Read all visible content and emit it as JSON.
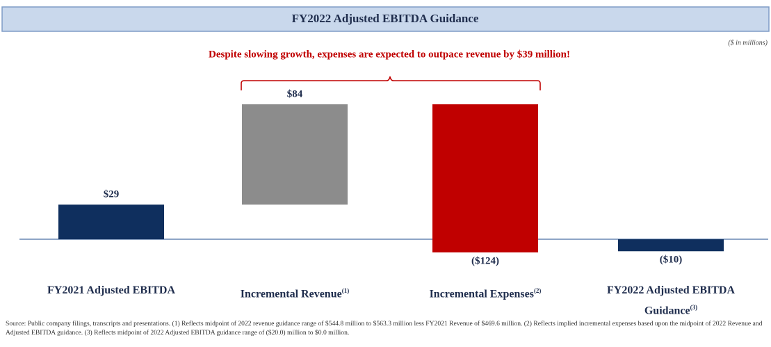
{
  "chart_data": {
    "type": "waterfall",
    "title": "FY2022 Adjusted EBITDA Guidance",
    "units": "($ in millions)",
    "annotation": "Despite slowing growth, expenses are expected to outpace revenue by $39 million!",
    "categories": [
      "FY2021 Adjusted EBITDA",
      "Incremental Revenue",
      "Incremental Expenses",
      "FY2022 Adjusted EBITDA Guidance"
    ],
    "category_notes": [
      null,
      "(1)",
      "(2)",
      "(3)"
    ],
    "measures": [
      "absolute",
      "relative",
      "relative",
      "total"
    ],
    "values": [
      29,
      84,
      -124,
      -10
    ],
    "value_labels": [
      "$29",
      "$84",
      "($124)",
      "($10)"
    ],
    "colors": [
      "#0f2f5e",
      "#8c8c8c",
      "#c00000",
      "#0f2f5e"
    ],
    "source": "Source: Public company filings, transcripts and presentations. (1) Reflects midpoint of 2022 revenue guidance range of $544.8 million to $563.3 million less FY2021 Revenue of $469.6 million. (2) Reflects implied incremental expenses based upon the midpoint of 2022 Revenue and Adjusted EBITDA guidance. (3) Reflects midpoint of 2022 Adjusted EBITDA guidance range of ($20.0) million to $0.0 million."
  }
}
